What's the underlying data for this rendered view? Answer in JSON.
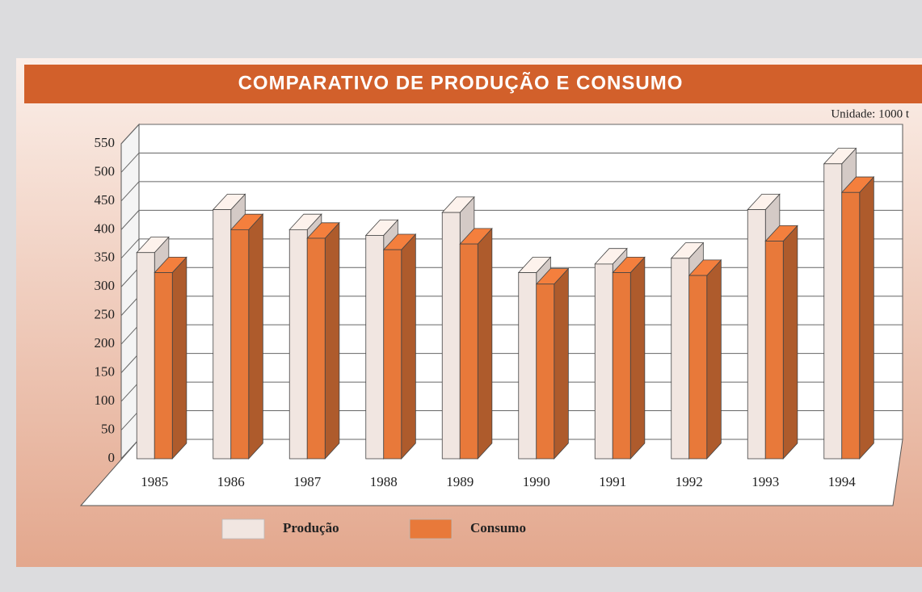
{
  "chart_data": {
    "type": "bar3d",
    "title": "COMPARATIVO DE PRODUÇÃO E CONSUMO",
    "annotation": "Unidade: 1000 t",
    "categories": [
      "1985",
      "1986",
      "1987",
      "1988",
      "1989",
      "1990",
      "1991",
      "1992",
      "1993",
      "1994"
    ],
    "series": [
      {
        "name": "Produção",
        "color": "#f1e6e1",
        "values": [
          360,
          435,
          400,
          390,
          430,
          325,
          340,
          350,
          435,
          515
        ]
      },
      {
        "name": "Consumo",
        "color": "#e8793a",
        "values": [
          325,
          400,
          385,
          365,
          375,
          305,
          325,
          320,
          380,
          465
        ]
      }
    ],
    "ylim": [
      0,
      550
    ],
    "yticks": [
      0,
      50,
      100,
      150,
      200,
      250,
      300,
      350,
      400,
      450,
      500,
      550
    ],
    "grid": true
  }
}
